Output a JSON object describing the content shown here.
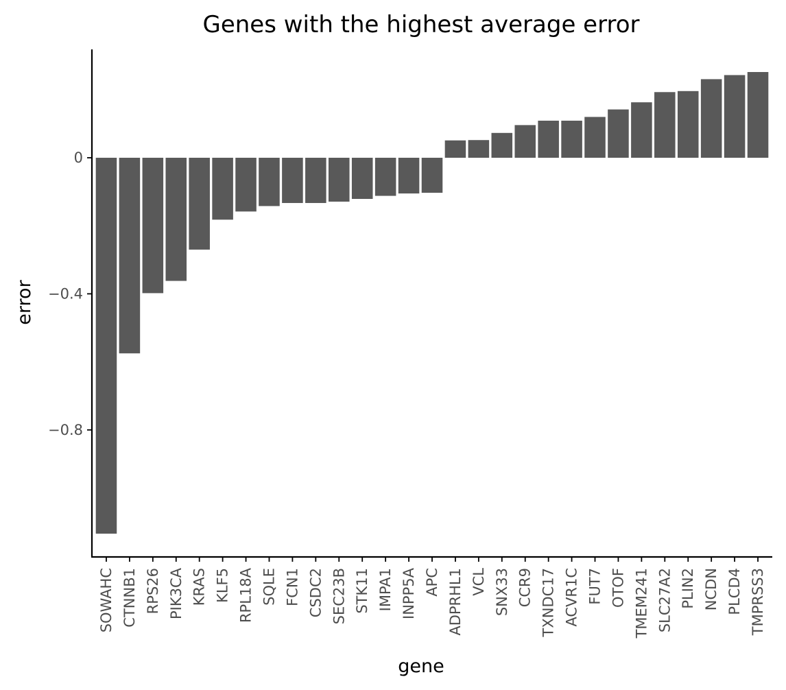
{
  "chart_data": {
    "type": "bar",
    "title": "Genes with the highest average error",
    "xlabel": "gene",
    "ylabel": "error",
    "categories": [
      "SOWAHC",
      "CTNNB1",
      "RPS26",
      "PIK3CA",
      "KRAS",
      "KLF5",
      "RPL18A",
      "SQLE",
      "FCN1",
      "CSDC2",
      "SEC23B",
      "STK11",
      "IMPA1",
      "INPP5A",
      "APC",
      "ADPRHL1",
      "VCL",
      "SNX33",
      "CCR9",
      "TXNDC17",
      "ACVR1C",
      "FUT7",
      "OTOF",
      "TMEM241",
      "SLC27A2",
      "PLIN2",
      "NCDN",
      "PLCD4",
      "TMPRSS3"
    ],
    "values": [
      -1.105,
      -0.575,
      -0.398,
      -0.362,
      -0.27,
      -0.182,
      -0.158,
      -0.142,
      -0.133,
      -0.133,
      -0.129,
      -0.121,
      -0.112,
      -0.105,
      -0.103,
      0.051,
      0.052,
      0.073,
      0.096,
      0.109,
      0.109,
      0.12,
      0.142,
      0.163,
      0.193,
      0.196,
      0.231,
      0.243,
      0.252
    ],
    "yticks": [
      0,
      -0.4,
      -0.8
    ],
    "ytick_labels": [
      "0",
      "−0.4",
      "−0.8"
    ],
    "ylim": [
      -1.18,
      0.32
    ],
    "grid": false,
    "legend": "none",
    "bar_color": "#595959"
  }
}
